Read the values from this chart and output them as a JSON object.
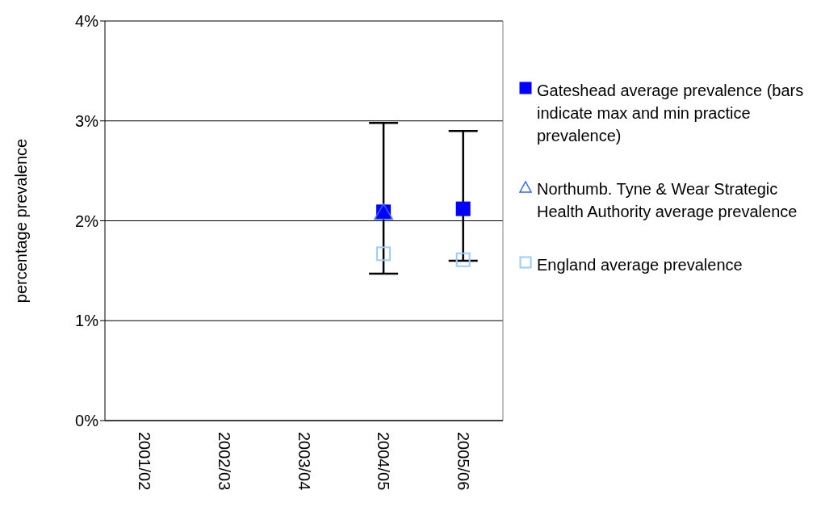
{
  "chart_data": {
    "type": "scatter",
    "ylabel": "percentage prevalence",
    "categories": [
      "2001/02",
      "2002/03",
      "2003/04",
      "2004/05",
      "2005/06"
    ],
    "series": [
      {
        "name": "Gateshead average prevalence (bars indicate max and min practice prevalence)",
        "color": "#0000ff",
        "marker": "square",
        "values": [
          null,
          null,
          null,
          2.09,
          2.12
        ],
        "errors": [
          null,
          null,
          null,
          [
            1.47,
            2.98
          ],
          [
            1.6,
            2.9
          ]
        ]
      },
      {
        "name": "Northumb. Tyne & Wear Strategic Health Authority average prevalence",
        "color": "#3366ff",
        "marker": "triangle",
        "values": [
          null,
          null,
          null,
          2.08,
          null
        ]
      },
      {
        "name": "England average prevalence",
        "color": "#99ccff",
        "marker": "square",
        "values": [
          null,
          null,
          null,
          1.67,
          1.61
        ]
      }
    ],
    "ylim": [
      0,
      4
    ],
    "yticks": [
      {
        "value": 0,
        "label": "0%"
      },
      {
        "value": 1,
        "label": "1%"
      },
      {
        "value": 2,
        "label": "2%"
      },
      {
        "value": 3,
        "label": "3%"
      },
      {
        "value": 4,
        "label": "4%"
      }
    ],
    "grid": "y",
    "legend": "right"
  }
}
